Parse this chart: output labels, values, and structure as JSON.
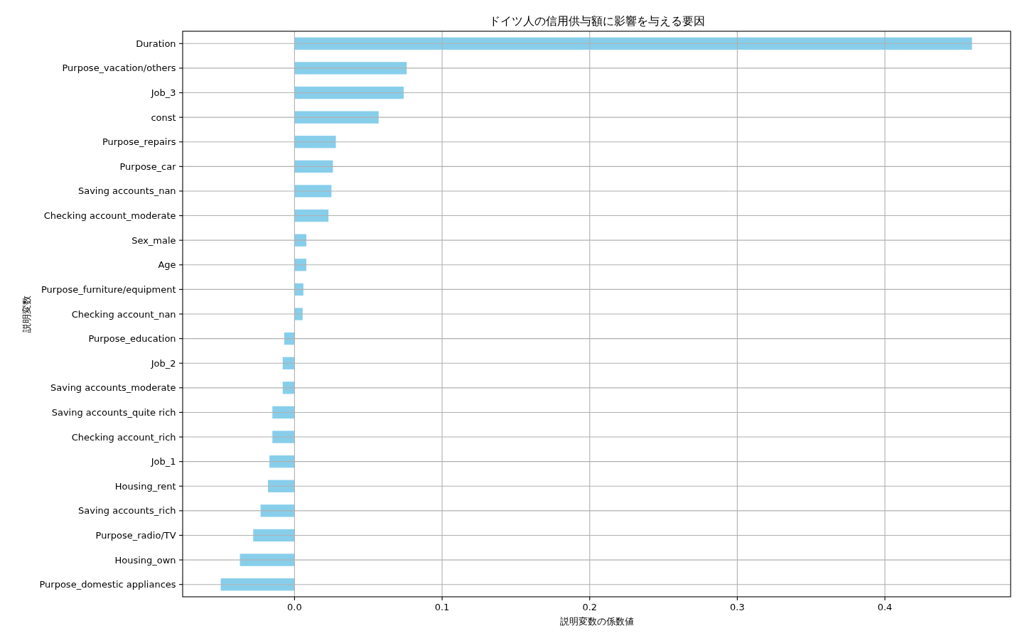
{
  "chart_data": {
    "type": "bar",
    "orientation": "horizontal",
    "title": "ドイツ人の信用供与額に影響を与える要因",
    "xlabel": "説明変数の係数値",
    "ylabel": "説明変数",
    "categories": [
      "Duration",
      "Purpose_vacation/others",
      "Job_3",
      "const",
      "Purpose_repairs",
      "Purpose_car",
      "Saving accounts_nan",
      "Checking account_moderate",
      "Sex_male",
      "Age",
      "Purpose_furniture/equipment",
      "Checking account_nan",
      "Purpose_education",
      "Job_2",
      "Saving accounts_moderate",
      "Saving accounts_quite rich",
      "Checking account_rich",
      "Job_1",
      "Housing_rent",
      "Saving accounts_rich",
      "Purpose_radio/TV",
      "Housing_own",
      "Purpose_domestic appliances"
    ],
    "values": [
      0.459,
      0.076,
      0.074,
      0.057,
      0.028,
      0.026,
      0.025,
      0.023,
      0.008,
      0.008,
      0.006,
      0.0055,
      -0.007,
      -0.008,
      -0.008,
      -0.015,
      -0.015,
      -0.017,
      -0.018,
      -0.023,
      -0.028,
      -0.037,
      -0.05
    ],
    "color": "#87ceeb",
    "xlim": [
      -0.0758,
      0.4852
    ],
    "xticks": [
      {
        "value": 0,
        "label": "0.0"
      },
      0.1,
      0.2,
      0.3,
      0.4
    ],
    "grid": true
  }
}
